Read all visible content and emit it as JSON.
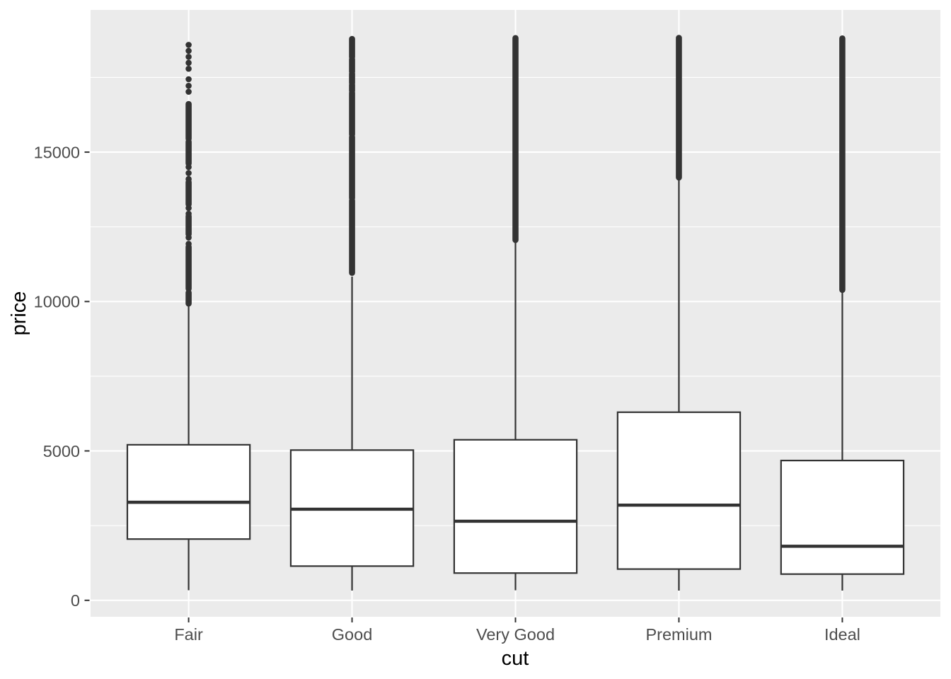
{
  "figure": {
    "background": "#FFFFFF",
    "panel_background": "#EBEBEB",
    "gridline_color": "#FFFFFF",
    "box_stroke_color": "#333333",
    "box_fill_color": "#FFFFFF",
    "outlier_color": "#333333",
    "tick_mark_color": "#333333",
    "tick_label_color": "#4D4D4D",
    "axis_title_color": "#000000"
  },
  "chart_data": {
    "type": "boxplot",
    "title": "",
    "xlabel": "cut",
    "ylabel": "price",
    "categories": [
      "Fair",
      "Good",
      "Very Good",
      "Premium",
      "Ideal"
    ],
    "y_axis": {
      "major_ticks": [
        0,
        5000,
        10000,
        15000
      ],
      "minor_ticks": [
        2500,
        7500,
        12500,
        17500
      ],
      "range": [
        -550,
        19760
      ],
      "grid": true
    },
    "x_axis": {
      "grid_vertical_major": true
    },
    "legend": "none",
    "series": [
      {
        "category": "Fair",
        "lower_whisker": 337,
        "q1": 2050,
        "median": 3282,
        "q3": 5206,
        "upper_whisker": 9899,
        "outlier_dots": [
          18590,
          18390,
          18190,
          17990,
          17790,
          17440,
          17220,
          17020,
          14500,
          14300,
          14100,
          13130,
          12940,
          12140,
          11930
        ],
        "outlier_segments": [
          [
            16610,
            15450
          ],
          [
            15350,
            14620
          ],
          [
            14000,
            13250
          ],
          [
            12850,
            12250
          ],
          [
            11830,
            10430
          ],
          [
            10300,
            9930
          ]
        ]
      },
      {
        "category": "Good",
        "lower_whisker": 327,
        "q1": 1145,
        "median": 3050,
        "q3": 5028,
        "upper_whisker": 10838,
        "outlier_dots": [],
        "outlier_segments": [
          [
            18788,
            18180
          ],
          [
            18110,
            17690
          ],
          [
            17620,
            17310
          ],
          [
            17250,
            17050
          ],
          [
            16980,
            15590
          ],
          [
            15500,
            13460
          ],
          [
            13380,
            10960
          ]
        ]
      },
      {
        "category": "Very Good",
        "lower_whisker": 336,
        "q1": 912,
        "median": 2648,
        "q3": 5373,
        "upper_whisker": 12030,
        "outlier_dots": [],
        "outlier_segments": [
          [
            18818,
            12060
          ]
        ]
      },
      {
        "category": "Premium",
        "lower_whisker": 326,
        "q1": 1046,
        "median": 3185,
        "q3": 6296,
        "upper_whisker": 14160,
        "outlier_dots": [],
        "outlier_segments": [
          [
            18823,
            14150
          ]
        ]
      },
      {
        "category": "Ideal",
        "lower_whisker": 326,
        "q1": 878,
        "median": 1810,
        "q3": 4679,
        "upper_whisker": 10366,
        "outlier_dots": [],
        "outlier_segments": [
          [
            18806,
            10390
          ]
        ]
      }
    ]
  }
}
